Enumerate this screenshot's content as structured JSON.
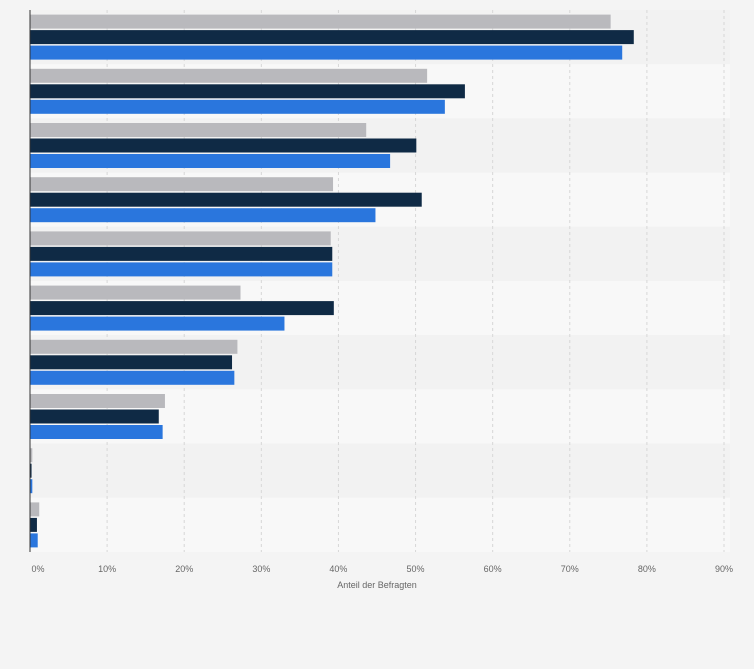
{
  "chart_data": {
    "type": "bar",
    "orientation": "horizontal",
    "title": "",
    "xlabel": "Anteil der Befragten",
    "ylabel": "",
    "xlim": [
      0,
      90
    ],
    "x_ticks": [
      "0%",
      "10%",
      "20%",
      "30%",
      "40%",
      "50%",
      "60%",
      "70%",
      "80%",
      "90%"
    ],
    "grid": true,
    "legend": "none",
    "categories": [
      "",
      "",
      "",
      "",
      "",
      "",
      "",
      "",
      "",
      ""
    ],
    "series": [
      {
        "color": "#b9b9bd",
        "values": [
          75.3,
          51.5,
          43.6,
          39.3,
          39.0,
          27.3,
          26.9,
          17.5,
          0.3,
          1.2
        ]
      },
      {
        "color": "#0f2a45",
        "values": [
          78.3,
          56.4,
          50.1,
          50.8,
          39.2,
          39.4,
          26.2,
          16.7,
          0.2,
          0.9
        ]
      },
      {
        "color": "#2a76dd",
        "values": [
          76.8,
          53.8,
          46.7,
          44.8,
          39.2,
          33.0,
          26.5,
          17.2,
          0.3,
          1.0
        ]
      }
    ],
    "colors": {
      "band_dark": "#f2f2f2",
      "band_light": "#f8f8f8",
      "grid": "#d7d7d7",
      "axis": "#333333",
      "text": "#666666"
    }
  }
}
